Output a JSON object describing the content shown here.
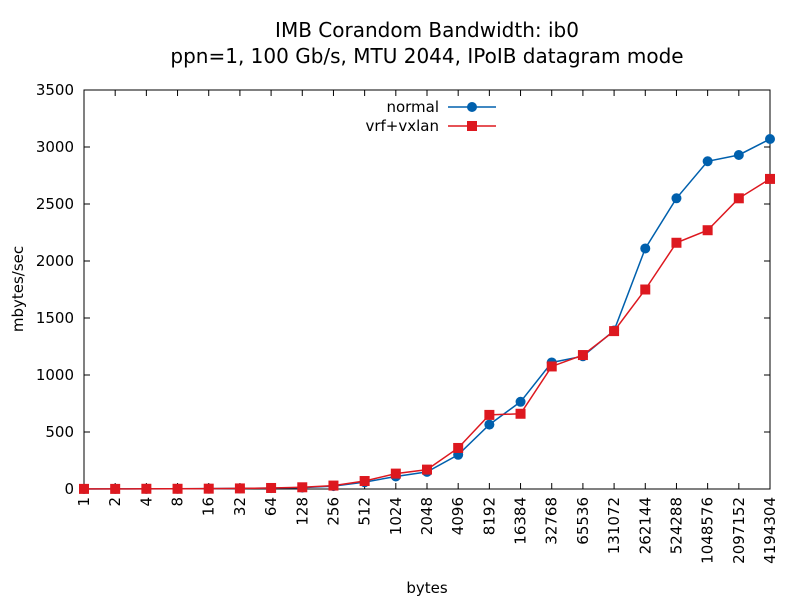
{
  "chart_data": {
    "type": "line",
    "title": "IMB Corandom Bandwidth: ib0",
    "subtitle": "ppn=1, 100 Gb/s, MTU 2044, IPoIB datagram mode",
    "xlabel": "bytes",
    "ylabel": "mbytes/sec",
    "ylim": [
      0,
      3500
    ],
    "yticks": [
      0,
      500,
      1000,
      1500,
      2000,
      2500,
      3000,
      3500
    ],
    "categories": [
      "1",
      "2",
      "4",
      "8",
      "16",
      "32",
      "64",
      "128",
      "256",
      "512",
      "1024",
      "2048",
      "4096",
      "8192",
      "16384",
      "32768",
      "65536",
      "131072",
      "262144",
      "524288",
      "1048576",
      "2097152",
      "4194304"
    ],
    "legend_position": "top-center",
    "grid": false,
    "series": [
      {
        "name": "normal",
        "color": "#0060ad",
        "marker": "circle",
        "values": [
          0,
          1,
          1,
          2,
          3,
          5,
          8,
          12,
          25,
          60,
          110,
          150,
          300,
          565,
          765,
          1110,
          1165,
          1390,
          2110,
          2550,
          2875,
          2930,
          3070
        ]
      },
      {
        "name": "vrf+vxlan",
        "color": "#dd181f",
        "marker": "square",
        "values": [
          1,
          1,
          2,
          2,
          3,
          5,
          9,
          15,
          30,
          70,
          135,
          170,
          360,
          650,
          660,
          1075,
          1175,
          1385,
          1750,
          2160,
          2270,
          2550,
          2720
        ]
      }
    ]
  }
}
